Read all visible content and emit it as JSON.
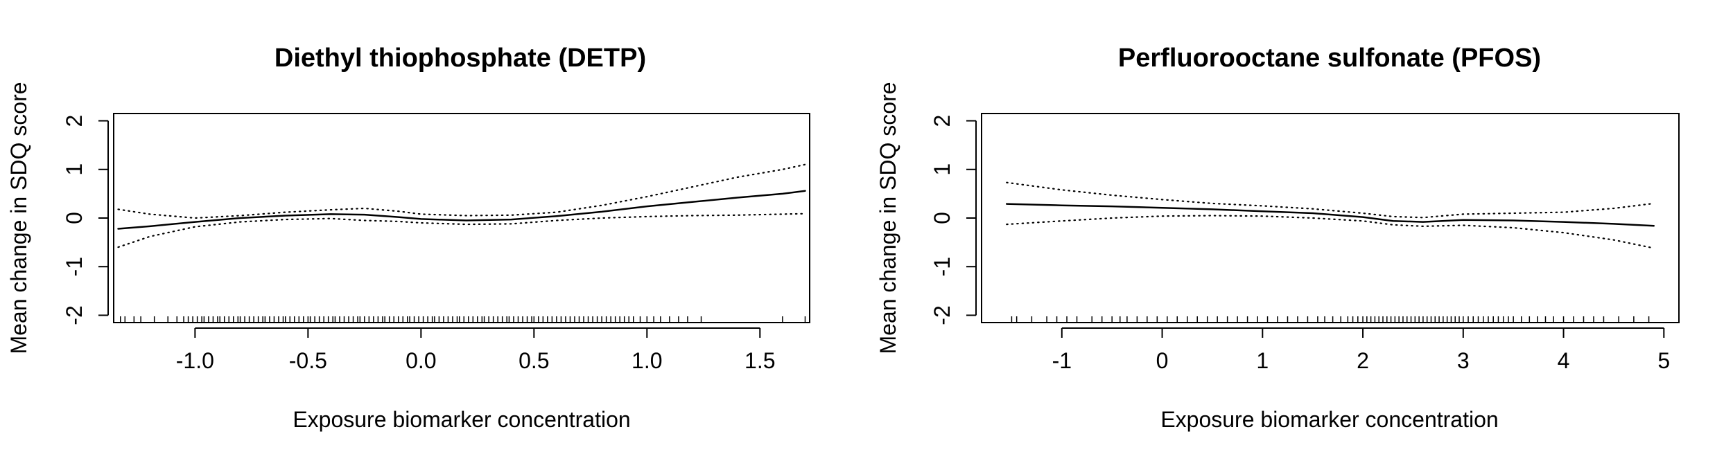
{
  "chart_data": [
    {
      "type": "line",
      "title": "Diethyl thiophosphate (DETP)",
      "xlabel": "Exposure biomarker concentration",
      "ylabel": "Mean change in SDQ score",
      "xlim": [
        -1.36,
        1.72
      ],
      "ylim": [
        -2.15,
        2.15
      ],
      "xticks": [
        -1.0,
        -0.5,
        0.0,
        0.5,
        1.0,
        1.5
      ],
      "xtick_labels": [
        "-1.0",
        "-0.5",
        "0.0",
        "0.5",
        "1.0",
        "1.5"
      ],
      "yticks": [
        -2,
        -1,
        0,
        1,
        2
      ],
      "ytick_labels": [
        "-2",
        "-1",
        "0",
        "1",
        "2"
      ],
      "grid": false,
      "line_color": "#000000",
      "series": [
        {
          "style": "solid",
          "x": [
            -1.34,
            -1.2,
            -1.0,
            -0.8,
            -0.6,
            -0.4,
            -0.25,
            -0.1,
            0.0,
            0.2,
            0.4,
            0.6,
            0.8,
            1.0,
            1.2,
            1.4,
            1.6,
            1.7
          ],
          "y": [
            -0.22,
            -0.17,
            -0.08,
            0.0,
            0.05,
            0.08,
            0.07,
            0.02,
            -0.02,
            -0.05,
            -0.03,
            0.04,
            0.13,
            0.24,
            0.33,
            0.42,
            0.5,
            0.56
          ]
        },
        {
          "style": "dotted",
          "x": [
            -1.34,
            -1.2,
            -1.0,
            -0.8,
            -0.6,
            -0.4,
            -0.25,
            -0.1,
            0.0,
            0.2,
            0.4,
            0.6,
            0.8,
            1.0,
            1.2,
            1.4,
            1.6,
            1.7
          ],
          "y": [
            0.18,
            0.08,
            0.0,
            0.05,
            0.12,
            0.17,
            0.2,
            0.14,
            0.08,
            0.05,
            0.06,
            0.12,
            0.26,
            0.44,
            0.64,
            0.84,
            1.0,
            1.1
          ]
        },
        {
          "style": "dotted",
          "x": [
            -1.34,
            -1.2,
            -1.0,
            -0.8,
            -0.6,
            -0.4,
            -0.25,
            -0.1,
            0.0,
            0.2,
            0.4,
            0.6,
            0.8,
            1.0,
            1.2,
            1.4,
            1.6,
            1.7
          ],
          "y": [
            -0.6,
            -0.38,
            -0.18,
            -0.08,
            -0.03,
            -0.01,
            -0.05,
            -0.07,
            -0.1,
            -0.13,
            -0.12,
            -0.05,
            0.0,
            0.03,
            0.05,
            0.06,
            0.08,
            0.09
          ]
        }
      ],
      "rug": [
        -1.33,
        -1.31,
        -1.27,
        -1.24,
        -1.18,
        -1.12,
        -1.08,
        -1.05,
        -1.03,
        -1.01,
        -0.99,
        -0.97,
        -0.96,
        -0.94,
        -0.92,
        -0.9,
        -0.89,
        -0.87,
        -0.85,
        -0.83,
        -0.81,
        -0.8,
        -0.78,
        -0.76,
        -0.74,
        -0.72,
        -0.7,
        -0.69,
        -0.67,
        -0.65,
        -0.63,
        -0.61,
        -0.6,
        -0.58,
        -0.56,
        -0.54,
        -0.52,
        -0.5,
        -0.49,
        -0.47,
        -0.45,
        -0.43,
        -0.41,
        -0.39,
        -0.38,
        -0.36,
        -0.34,
        -0.32,
        -0.3,
        -0.28,
        -0.27,
        -0.25,
        -0.23,
        -0.21,
        -0.19,
        -0.17,
        -0.16,
        -0.14,
        -0.12,
        -0.1,
        -0.08,
        -0.06,
        -0.05,
        -0.03,
        -0.01,
        0.01,
        0.03,
        0.05,
        0.06,
        0.08,
        0.1,
        0.12,
        0.14,
        0.16,
        0.17,
        0.19,
        0.21,
        0.23,
        0.25,
        0.27,
        0.28,
        0.3,
        0.32,
        0.34,
        0.36,
        0.38,
        0.39,
        0.41,
        0.43,
        0.45,
        0.47,
        0.49,
        0.5,
        0.52,
        0.54,
        0.56,
        0.58,
        0.6,
        0.62,
        0.64,
        0.66,
        0.68,
        0.7,
        0.72,
        0.74,
        0.76,
        0.78,
        0.8,
        0.82,
        0.84,
        0.86,
        0.88,
        0.9,
        0.92,
        0.94,
        0.97,
        1.0,
        1.03,
        1.06,
        1.1,
        1.14,
        1.18,
        1.24,
        1.6,
        1.7
      ]
    },
    {
      "type": "line",
      "title": "Perfluorooctane sulfonate (PFOS)",
      "xlabel": "Exposure biomarker concentration",
      "ylabel": "Mean change in SDQ score",
      "xlim": [
        -1.8,
        5.15
      ],
      "ylim": [
        -2.15,
        2.15
      ],
      "xticks": [
        -1,
        0,
        1,
        2,
        3,
        4,
        5
      ],
      "xtick_labels": [
        "-1",
        "0",
        "1",
        "2",
        "3",
        "4",
        "5"
      ],
      "yticks": [
        -2,
        -1,
        0,
        1,
        2
      ],
      "ytick_labels": [
        "-2",
        "-1",
        "0",
        "1",
        "2"
      ],
      "grid": false,
      "line_color": "#000000",
      "series": [
        {
          "style": "solid",
          "x": [
            -1.55,
            -1.0,
            -0.5,
            0.0,
            0.5,
            1.0,
            1.5,
            2.0,
            2.3,
            2.6,
            3.0,
            3.5,
            4.0,
            4.5,
            4.9
          ],
          "y": [
            0.29,
            0.26,
            0.24,
            0.21,
            0.18,
            0.14,
            0.1,
            0.02,
            -0.06,
            -0.08,
            -0.04,
            -0.05,
            -0.08,
            -0.12,
            -0.16
          ]
        },
        {
          "style": "dotted",
          "x": [
            -1.55,
            -1.0,
            -0.5,
            0.0,
            0.5,
            1.0,
            1.5,
            2.0,
            2.3,
            2.6,
            3.0,
            3.5,
            4.0,
            4.5,
            4.9
          ],
          "y": [
            0.73,
            0.58,
            0.47,
            0.38,
            0.3,
            0.25,
            0.19,
            0.1,
            0.03,
            0.01,
            0.08,
            0.1,
            0.12,
            0.2,
            0.3
          ]
        },
        {
          "style": "dotted",
          "x": [
            -1.55,
            -1.0,
            -0.5,
            0.0,
            0.5,
            1.0,
            1.5,
            2.0,
            2.3,
            2.6,
            3.0,
            3.5,
            4.0,
            4.5,
            4.9
          ],
          "y": [
            -0.13,
            -0.06,
            0.0,
            0.04,
            0.05,
            0.04,
            0.0,
            -0.06,
            -0.14,
            -0.17,
            -0.15,
            -0.2,
            -0.3,
            -0.45,
            -0.62
          ]
        }
      ],
      "rug": [
        -1.5,
        -1.45,
        -1.3,
        -1.15,
        -1.05,
        -0.95,
        -0.85,
        -0.7,
        -0.6,
        -0.5,
        -0.42,
        -0.35,
        -0.25,
        -0.15,
        -0.05,
        0.05,
        0.15,
        0.25,
        0.35,
        0.45,
        0.55,
        0.65,
        0.75,
        0.85,
        0.95,
        1.05,
        1.15,
        1.25,
        1.35,
        1.45,
        1.55,
        1.62,
        1.7,
        1.78,
        1.85,
        1.9,
        1.95,
        2.0,
        2.04,
        2.08,
        2.12,
        2.16,
        2.2,
        2.24,
        2.28,
        2.32,
        2.36,
        2.4,
        2.44,
        2.48,
        2.52,
        2.56,
        2.6,
        2.64,
        2.68,
        2.72,
        2.76,
        2.8,
        2.84,
        2.88,
        2.92,
        2.96,
        3.0,
        3.05,
        3.1,
        3.15,
        3.2,
        3.25,
        3.3,
        3.35,
        3.4,
        3.45,
        3.5,
        3.58,
        3.66,
        3.74,
        3.82,
        3.9,
        4.0,
        4.1,
        4.2,
        4.3,
        4.4,
        4.55,
        4.7,
        4.85
      ]
    }
  ]
}
